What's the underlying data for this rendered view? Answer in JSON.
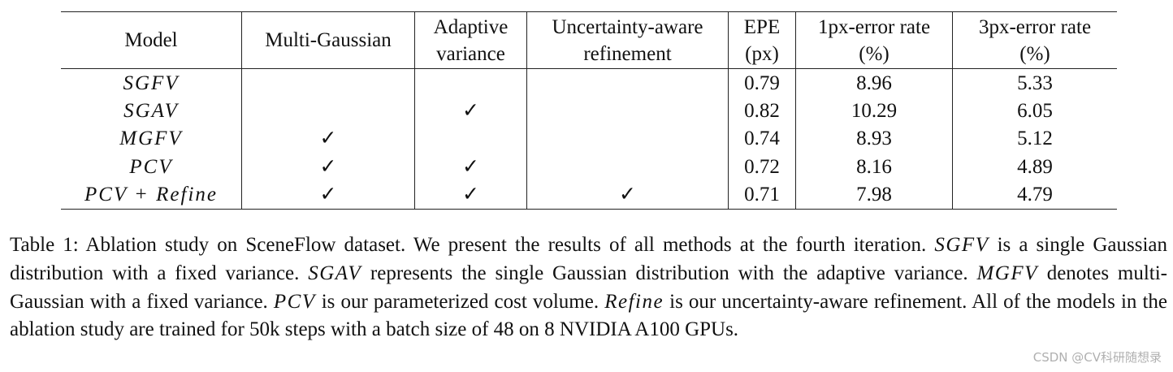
{
  "table": {
    "headers": {
      "model": "Model",
      "multi_gaussian": "Multi-Gaussian",
      "adaptive_variance_l1": "Adaptive",
      "adaptive_variance_l2": "variance",
      "uncertainty_l1": "Uncertainty-aware",
      "uncertainty_l2": "refinement",
      "epe_l1": "EPE",
      "epe_l2": "(px)",
      "err1_l1": "1px-error rate",
      "err1_l2": "(%)",
      "err3_l1": "3px-error rate",
      "err3_l2": "(%)"
    },
    "rows": [
      {
        "model": "SGFV",
        "multi_gaussian": "",
        "adaptive": "",
        "refine": "",
        "epe": "0.79",
        "err1": "8.96",
        "err3": "5.33"
      },
      {
        "model": "SGAV",
        "multi_gaussian": "",
        "adaptive": "✓",
        "refine": "",
        "epe": "0.82",
        "err1": "10.29",
        "err3": "6.05"
      },
      {
        "model": "MGFV",
        "multi_gaussian": "✓",
        "adaptive": "",
        "refine": "",
        "epe": "0.74",
        "err1": "8.93",
        "err3": "5.12"
      },
      {
        "model": "PCV",
        "multi_gaussian": "✓",
        "adaptive": "✓",
        "refine": "",
        "epe": "0.72",
        "err1": "8.16",
        "err3": "4.89"
      },
      {
        "model": "PCV + Refine",
        "multi_gaussian": "✓",
        "adaptive": "✓",
        "refine": "✓",
        "epe": "0.71",
        "err1": "7.98",
        "err3": "4.79"
      }
    ]
  },
  "caption": {
    "t1": "Table 1: Ablation study on SceneFlow dataset. We present the results of all methods at the fourth iteration. ",
    "m1": "SGFV",
    "t2": " is a single Gaussian distribution with a fixed variance. ",
    "m2": "SGAV",
    "t3": " represents the single Gaussian distribution with the adaptive variance. ",
    "m3": "MGFV",
    "t4": " denotes multi-Gaussian with a fixed variance. ",
    "m4": "PCV",
    "t5": " is our parameterized cost volume. ",
    "m5": "Refine",
    "t6": " is our uncertainty-aware refinement. All of the models in the ablation study are trained for 50k steps with a batch size of 48 on 8 NVIDIA A100 GPUs."
  },
  "watermark": "CSDN @CV科研随想录"
}
